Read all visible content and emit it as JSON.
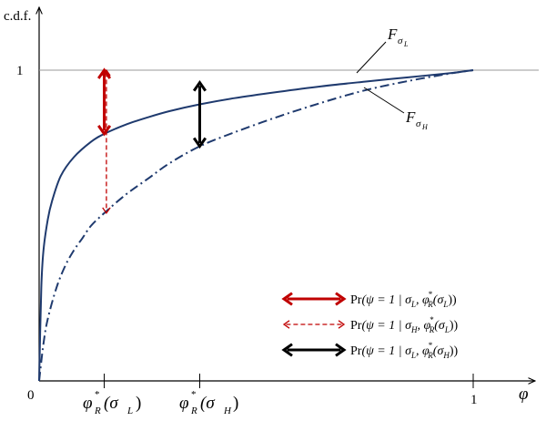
{
  "chart_data": {
    "type": "line",
    "ylabel": "c.d.f.",
    "xlabel": "φ",
    "origin_label": "0",
    "y_tick_labels": [
      "1"
    ],
    "x_tick_labels": [
      "1"
    ],
    "x_markers": [
      {
        "x": 0.15,
        "label_main": "φ",
        "label_sup": "*",
        "label_sub": "R",
        "label_arg": "(σ",
        "label_arg_sub": "L",
        "label_close": ")"
      },
      {
        "x": 0.37,
        "label_main": "φ",
        "label_sup": "*",
        "label_sub": "R",
        "label_arg": "(σ",
        "label_arg_sub": "H",
        "label_close": ")"
      }
    ],
    "xlim": [
      0,
      1.07
    ],
    "ylim": [
      0,
      1.16
    ],
    "grid": false,
    "reference_line_y": 1,
    "series": [
      {
        "name": "F_σL",
        "label_main": "F",
        "label_sub": "σ",
        "label_subsub": "L",
        "style": "solid",
        "color": "#1f3a6e",
        "x": [
          0,
          0.005,
          0.01,
          0.02,
          0.03,
          0.05,
          0.08,
          0.12,
          0.15,
          0.2,
          0.25,
          0.3,
          0.37,
          0.45,
          0.55,
          0.65,
          0.75,
          0.85,
          0.95,
          1.0
        ],
        "y": [
          0,
          0.3,
          0.42,
          0.52,
          0.58,
          0.66,
          0.72,
          0.77,
          0.795,
          0.825,
          0.848,
          0.868,
          0.89,
          0.91,
          0.93,
          0.948,
          0.963,
          0.977,
          0.991,
          1.0
        ]
      },
      {
        "name": "F_σH",
        "label_main": "F",
        "label_sub": "σ",
        "label_subsub": "H",
        "style": "dashdot",
        "color": "#1f3a6e",
        "x": [
          0,
          0.01,
          0.02,
          0.04,
          0.06,
          0.08,
          0.1,
          0.12,
          0.15,
          0.2,
          0.25,
          0.3,
          0.37,
          0.45,
          0.55,
          0.65,
          0.75,
          0.85,
          0.95,
          1.0
        ],
        "y": [
          0,
          0.12,
          0.2,
          0.3,
          0.37,
          0.42,
          0.46,
          0.5,
          0.54,
          0.6,
          0.65,
          0.7,
          0.755,
          0.8,
          0.85,
          0.895,
          0.935,
          0.965,
          0.99,
          1.0
        ]
      }
    ],
    "arrows": [
      {
        "x": 0.15,
        "y_from": 0.795,
        "y_to": 1.0,
        "style": "solid",
        "color": "#c00000"
      },
      {
        "x": 0.155,
        "y_from": 0.54,
        "y_to": 1.0,
        "style": "dashed",
        "color": "#c00000"
      },
      {
        "x": 0.37,
        "y_from": 0.755,
        "y_to": 0.96,
        "style": "solid",
        "color": "#000000"
      }
    ],
    "legend": {
      "placement": "bottom-right",
      "entries": [
        {
          "style": "solid",
          "color": "#c00000",
          "text_pre": "Pr",
          "text_main": "(ψ = 1 | σ",
          "sub1": "L",
          "text_mid": ", φ",
          "sup": "*",
          "sub2": "R",
          "text_arg": "(σ",
          "sub3": "L",
          "text_end": "))"
        },
        {
          "style": "dashed",
          "color": "#c00000",
          "text_pre": "Pr",
          "text_main": "(ψ = 1 | σ",
          "sub1": "H",
          "text_mid": ", φ",
          "sup": "*",
          "sub2": "R",
          "text_arg": "(σ",
          "sub3": "L",
          "text_end": "))"
        },
        {
          "style": "solid",
          "color": "#000000",
          "text_pre": "Pr",
          "text_main": "(ψ = 1 | σ",
          "sub1": "L",
          "text_mid": ", φ",
          "sup": "*",
          "sub2": "R",
          "text_arg": "(σ",
          "sub3": "H",
          "text_end": "))"
        }
      ]
    }
  }
}
